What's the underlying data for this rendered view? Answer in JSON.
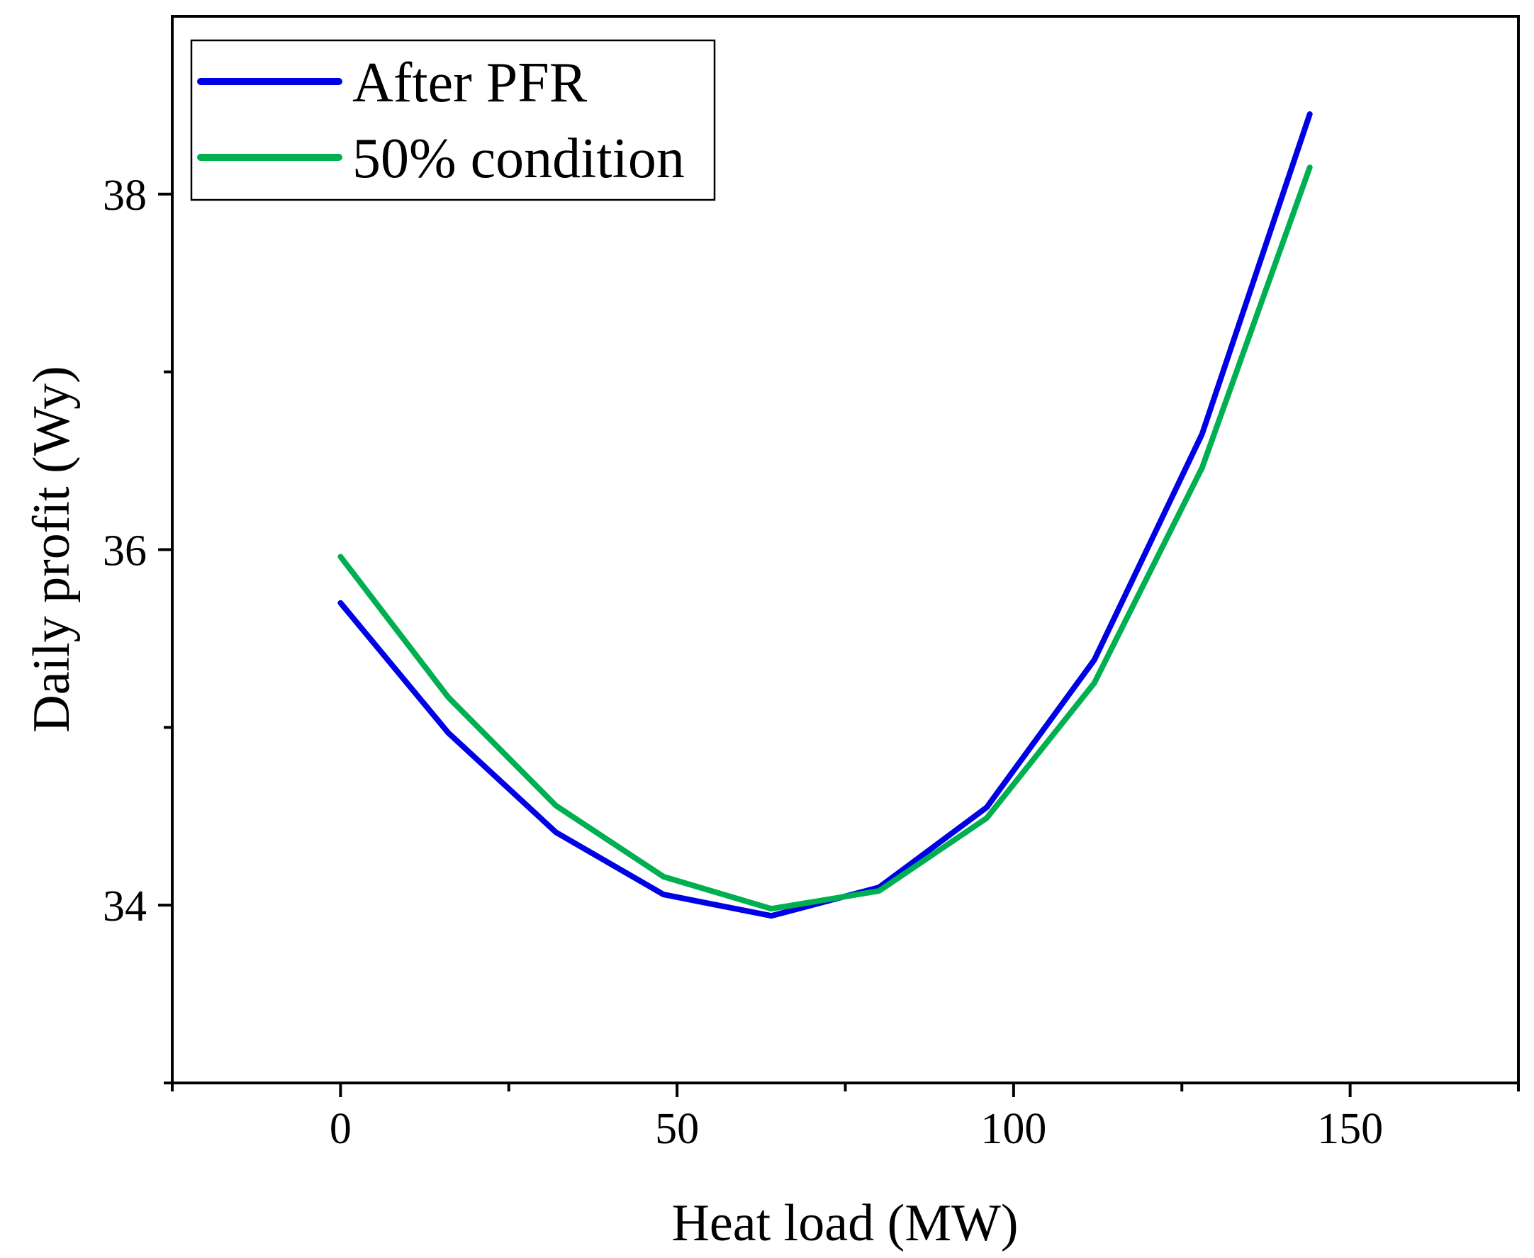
{
  "chart_data": {
    "type": "line",
    "title": "",
    "xlabel": "Heat load (MW)",
    "ylabel": "Daily profit (Wy)",
    "xlim": [
      -25,
      175
    ],
    "ylim": [
      33,
      39
    ],
    "x_ticks": [
      0,
      50,
      100,
      150
    ],
    "x_tick_labels": [
      "0",
      "50",
      "100",
      "150"
    ],
    "x_minor_ticks": [
      -25,
      25,
      75,
      125,
      175
    ],
    "y_ticks": [
      34,
      36,
      38
    ],
    "y_tick_labels": [
      "34",
      "36",
      "38"
    ],
    "y_minor_ticks": [
      33,
      35,
      37
    ],
    "grid": false,
    "legend_position": "top-left",
    "x": [
      0,
      16,
      32,
      48,
      64,
      80,
      96,
      112,
      128,
      144
    ],
    "series": [
      {
        "name": "After PFR",
        "color": "#0000e6",
        "values": [
          35.7,
          34.97,
          34.41,
          34.06,
          33.94,
          34.1,
          34.55,
          35.38,
          36.65,
          38.45
        ]
      },
      {
        "name": "50% condition",
        "color": "#00b050",
        "values": [
          35.96,
          35.17,
          34.56,
          34.16,
          33.98,
          34.08,
          34.49,
          35.25,
          36.46,
          38.15
        ]
      }
    ]
  }
}
